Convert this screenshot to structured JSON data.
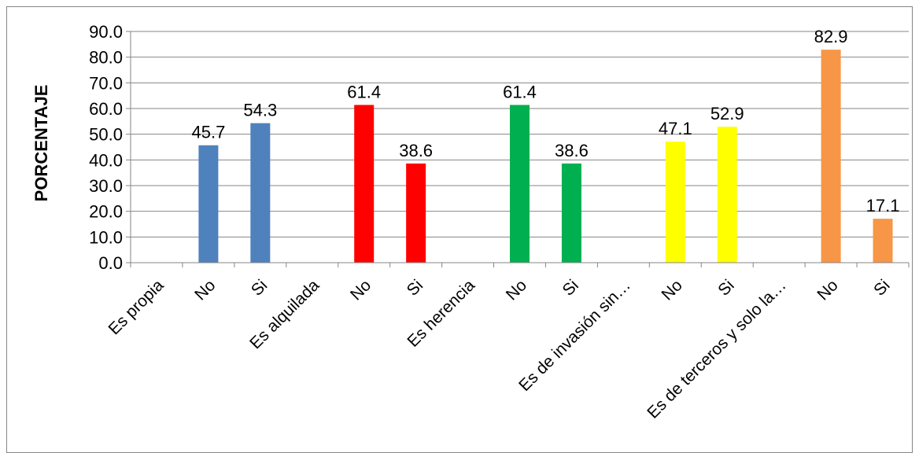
{
  "chart_data": {
    "type": "bar",
    "ylabel": "PORCENTAJE",
    "xlabel": "",
    "ylim": [
      0,
      90
    ],
    "ytick_step": 10,
    "ytick_labels": [
      "0.0",
      "10.0",
      "20.0",
      "30.0",
      "40.0",
      "50.0",
      "60.0",
      "70.0",
      "80.0",
      "90.0"
    ],
    "grid": true,
    "categories": [
      "Es propia",
      "No",
      "Si",
      "Es alquilada",
      "No",
      "Si",
      "Es herencia",
      "No",
      "Si",
      "Es de invasión sin…",
      "No",
      "Si",
      "Es de terceros y solo la…",
      "No",
      "Si"
    ],
    "values": [
      null,
      45.7,
      54.3,
      null,
      61.4,
      38.6,
      null,
      61.4,
      38.6,
      null,
      47.1,
      52.9,
      null,
      82.9,
      17.1
    ],
    "value_labels": [
      "",
      "45.7",
      "54.3",
      "",
      "61.4",
      "38.6",
      "",
      "61.4",
      "38.6",
      "",
      "47.1",
      "52.9",
      "",
      "82.9",
      "17.1"
    ],
    "bar_colors": [
      "",
      "#4F81BD",
      "#4F81BD",
      "",
      "#FF0000",
      "#FF0000",
      "",
      "#00B050",
      "#00B050",
      "",
      "#FFFF00",
      "#FFFF00",
      "",
      "#F79646",
      "#F79646"
    ]
  }
}
